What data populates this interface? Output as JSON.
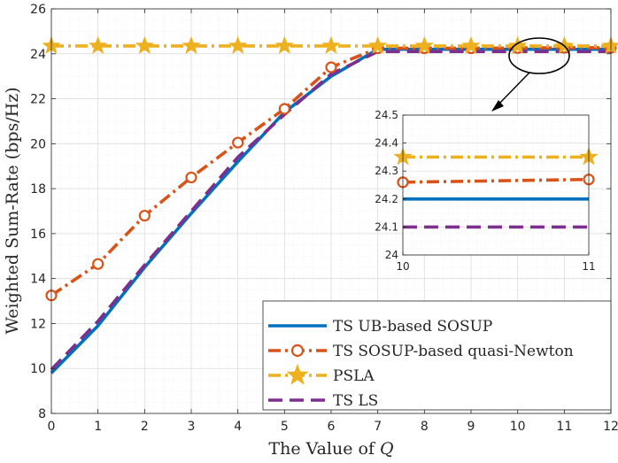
{
  "chart_data": {
    "type": "line",
    "xlabel_prefix": "The Value of ",
    "xlabel_var": "Q",
    "ylabel": "Weighted Sum-Rate (bps/Hz)",
    "xlim": [
      0,
      12
    ],
    "ylim": [
      8,
      26
    ],
    "xticks": [
      "0",
      "1",
      "2",
      "3",
      "4",
      "5",
      "6",
      "7",
      "8",
      "9",
      "10",
      "11",
      "12"
    ],
    "yticks": [
      "8",
      "10",
      "12",
      "14",
      "16",
      "18",
      "20",
      "22",
      "24",
      "26"
    ],
    "grid": true,
    "legend_position": "bottom-right",
    "x": [
      0,
      1,
      2,
      3,
      4,
      5,
      6,
      7,
      8,
      9,
      10,
      11,
      12
    ],
    "series": [
      {
        "name": "TS UB-based SOSUP",
        "color": "#0072BD",
        "style": "solid",
        "marker": "none",
        "values": [
          9.8,
          11.9,
          14.5,
          16.9,
          19.2,
          21.4,
          23.0,
          24.2,
          24.2,
          24.2,
          24.2,
          24.2,
          24.2
        ]
      },
      {
        "name": "TS SOSUP-based quasi-Newton",
        "color": "#D95319",
        "style": "dashdot",
        "marker": "circle",
        "values": [
          13.25,
          14.65,
          16.8,
          18.5,
          20.05,
          21.55,
          23.4,
          24.25,
          24.25,
          24.25,
          24.26,
          24.27,
          24.27
        ]
      },
      {
        "name": "PSLA",
        "color": "#EDB120",
        "style": "dashdot",
        "marker": "star",
        "values": [
          24.35,
          24.35,
          24.35,
          24.35,
          24.35,
          24.35,
          24.35,
          24.35,
          24.35,
          24.35,
          24.35,
          24.35,
          24.35
        ]
      },
      {
        "name": "TS LS",
        "color": "#7E2F8E",
        "style": "dashed",
        "marker": "none",
        "values": [
          9.95,
          12.1,
          14.6,
          17.0,
          19.4,
          21.3,
          23.1,
          24.1,
          24.1,
          24.1,
          24.1,
          24.1,
          24.1
        ]
      }
    ],
    "inset": {
      "xlim": [
        10,
        11
      ],
      "ylim": [
        24,
        24.5
      ],
      "xticks": [
        "10",
        "11"
      ],
      "yticks": [
        "24",
        "24.1",
        "24.2",
        "24.3",
        "24.4",
        "24.5"
      ],
      "x": [
        10,
        11
      ],
      "series_values": [
        [
          24.2,
          24.2
        ],
        [
          24.26,
          24.27
        ],
        [
          24.35,
          24.35
        ],
        [
          24.1,
          24.1
        ]
      ],
      "zoom_region": {
        "x": [
          10,
          11
        ],
        "y": [
          24,
          24.5
        ]
      }
    }
  }
}
